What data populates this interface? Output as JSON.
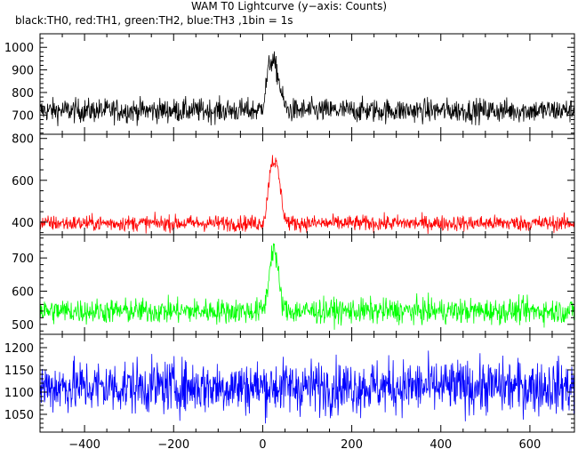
{
  "title": "WAM T0 Lightcurve (y−axis: Counts)",
  "subtitle": "black:TH0, red:TH1, green:TH2, blue:TH3 ,1bin = 1s",
  "chart_data": [
    {
      "type": "line",
      "series": [
        {
          "name": "TH0",
          "color": "#000000",
          "baseline": 720,
          "noise": 42,
          "peak": [
            {
              "x": 15,
              "height": 150,
              "width": 8
            },
            {
              "x": 30,
              "height": 160,
              "width": 10
            }
          ]
        }
      ],
      "x_range": [
        -500,
        700
      ],
      "ylim": [
        615,
        1060
      ],
      "yticks": [
        700,
        800,
        900,
        1000
      ],
      "grid": false
    },
    {
      "type": "line",
      "series": [
        {
          "name": "TH1",
          "color": "#ff0000",
          "baseline": 395,
          "noise": 30,
          "peak": [
            {
              "x": 18,
              "height": 200,
              "width": 7
            },
            {
              "x": 32,
              "height": 240,
              "width": 9
            }
          ]
        }
      ],
      "x_range": [
        -500,
        700
      ],
      "ylim": [
        340,
        820
      ],
      "yticks": [
        400,
        600,
        800
      ],
      "grid": false
    },
    {
      "type": "line",
      "series": [
        {
          "name": "TH2",
          "color": "#00ff00",
          "baseline": 540,
          "noise": 30,
          "peak": [
            {
              "x": 20,
              "height": 120,
              "width": 8
            },
            {
              "x": 30,
              "height": 110,
              "width": 8
            }
          ]
        }
      ],
      "x_range": [
        -500,
        700
      ],
      "ylim": [
        470,
        770
      ],
      "yticks": [
        500,
        600,
        700
      ],
      "grid": false
    },
    {
      "type": "line",
      "series": [
        {
          "name": "TH3",
          "color": "#0000ff",
          "baseline": 1112,
          "noise": 48,
          "peak": []
        }
      ],
      "x_range": [
        -500,
        700
      ],
      "ylim": [
        1010,
        1230
      ],
      "yticks": [
        1050,
        1100,
        1150,
        1200
      ],
      "xticks": [
        -400,
        -200,
        0,
        200,
        400,
        600
      ],
      "grid": false
    }
  ]
}
